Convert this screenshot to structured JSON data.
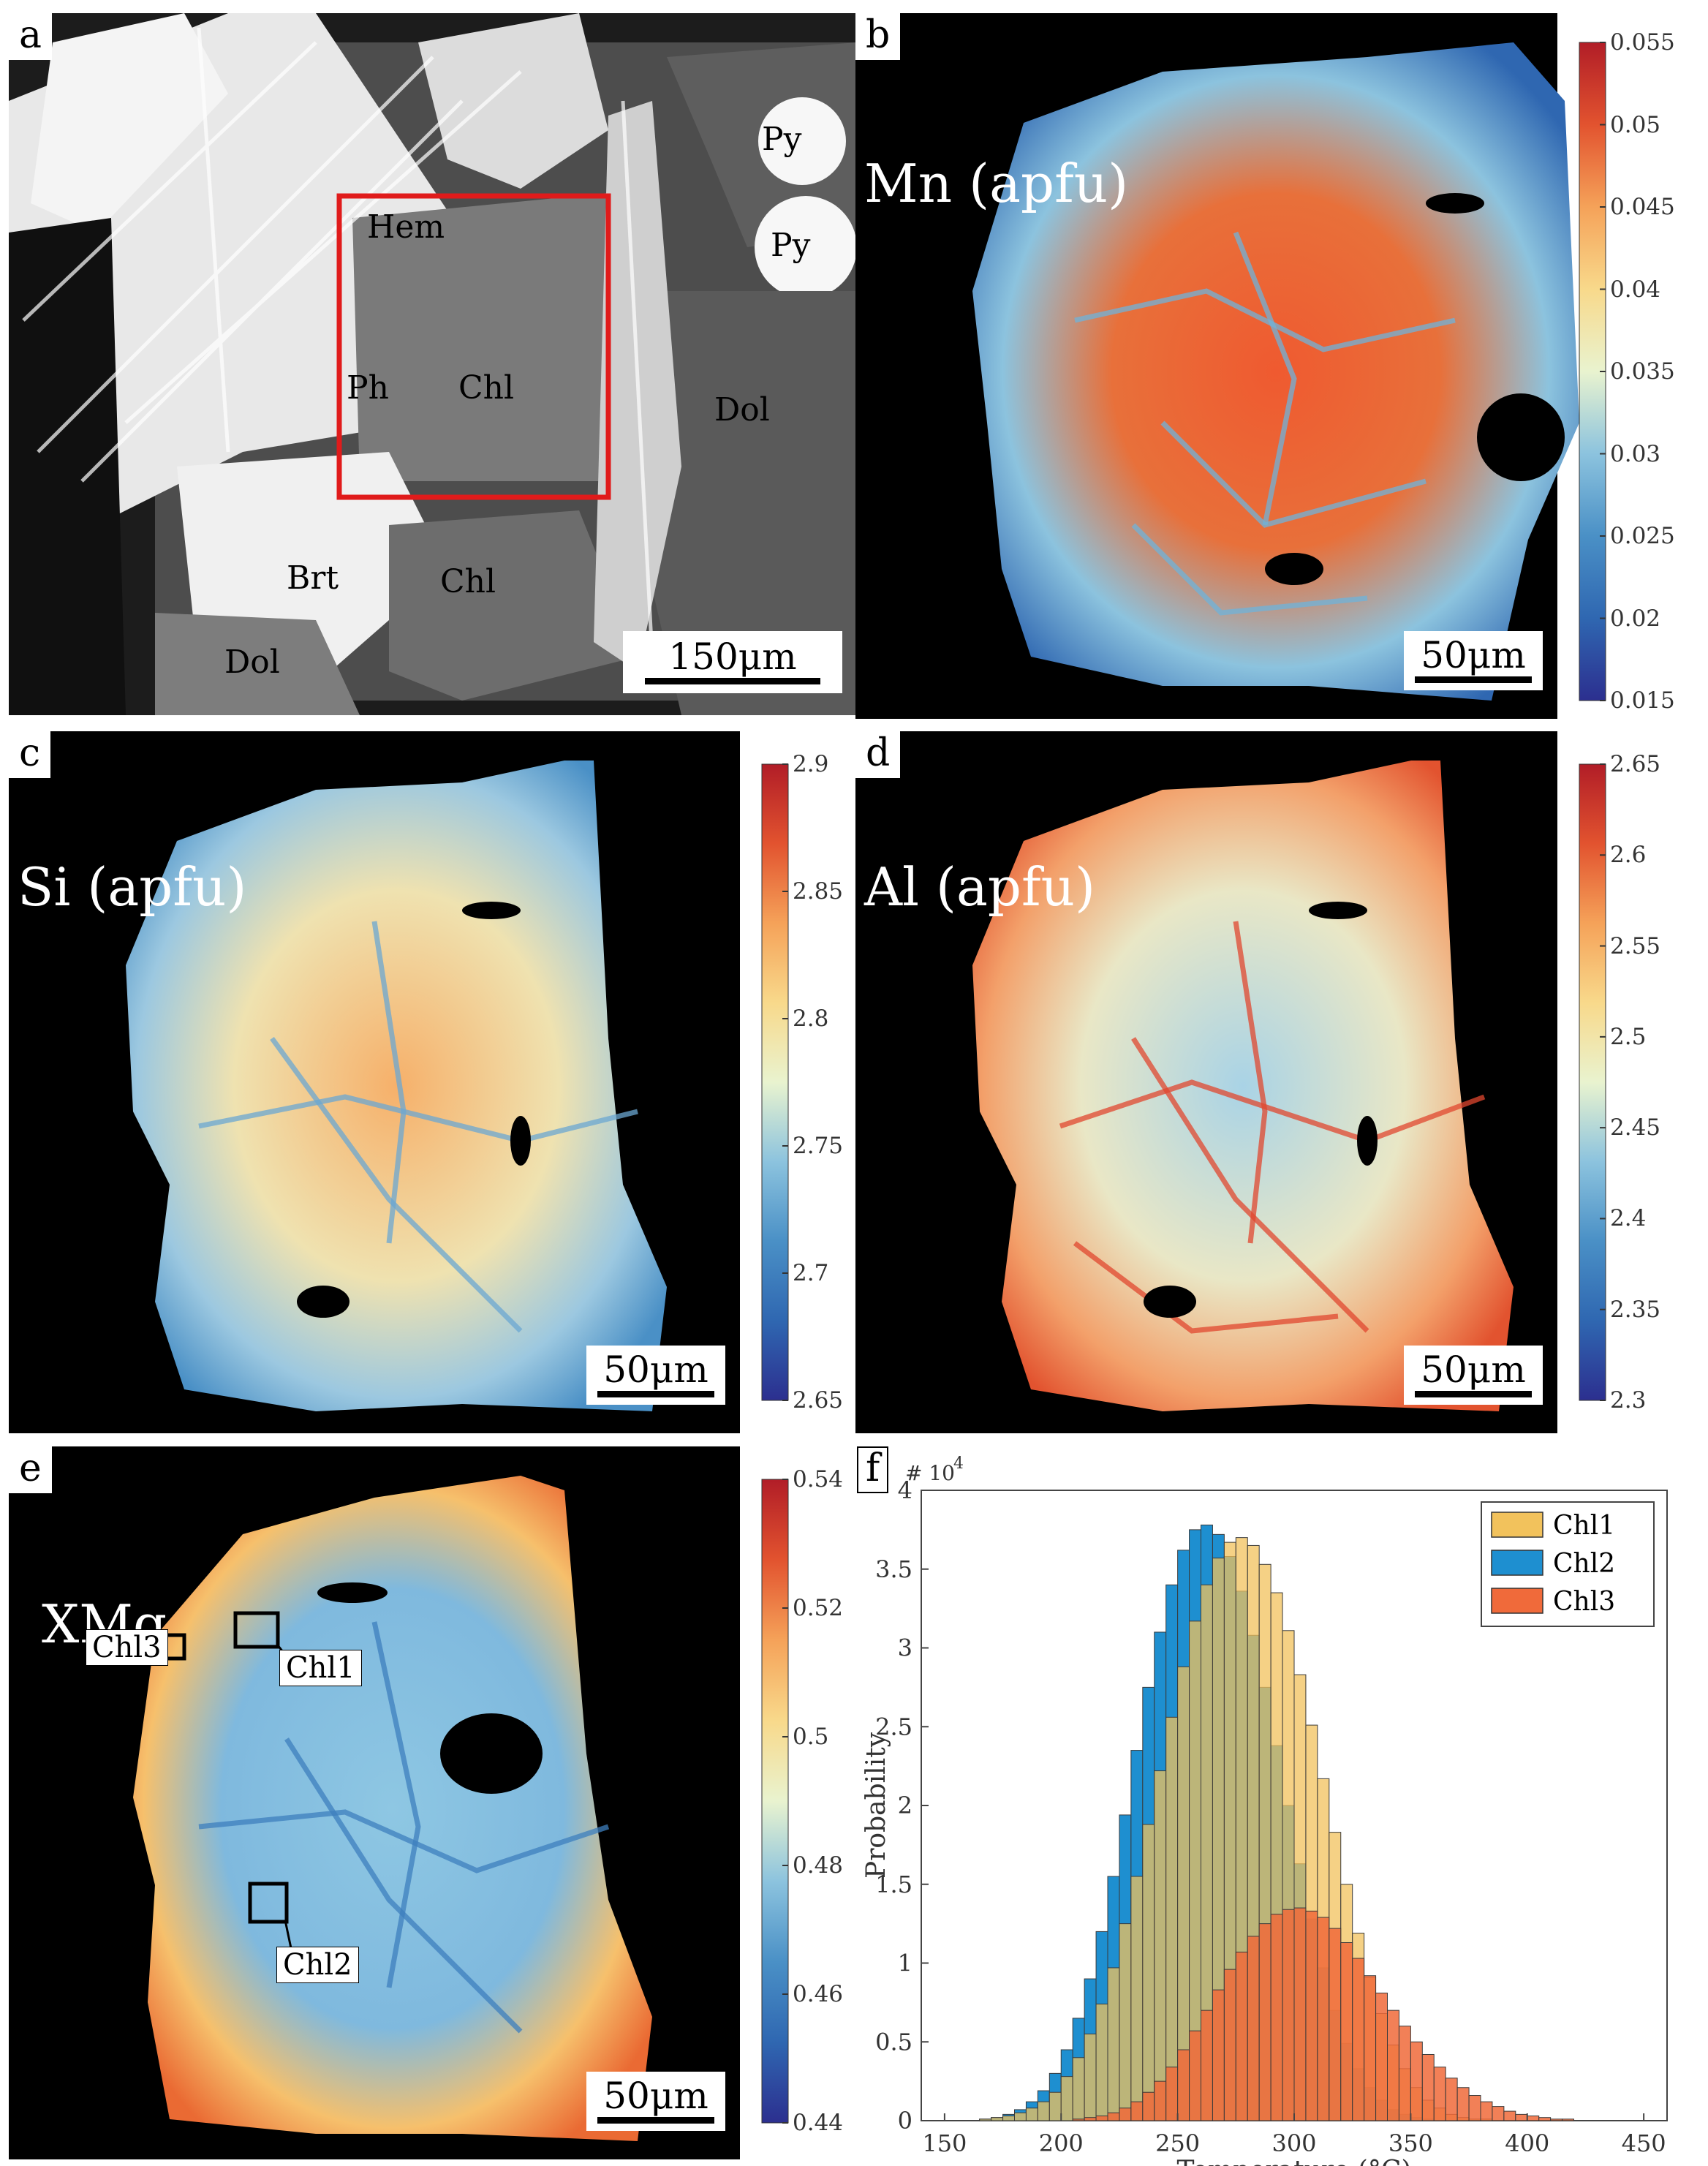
{
  "panels": {
    "a": {
      "letter": "a",
      "scalebar": "150μm",
      "minerals": [
        "Py",
        "Py",
        "Hem",
        "Ph",
        "Chl",
        "Dol",
        "Brt",
        "Chl",
        "Dol"
      ]
    },
    "b": {
      "letter": "b",
      "label": "Mn (apfu)",
      "scalebar": "50μm",
      "colorbar_ticks": [
        "0.055",
        "0.05",
        "0.045",
        "0.04",
        "0.035",
        "0.03",
        "0.025",
        "0.02",
        "0.015"
      ]
    },
    "c": {
      "letter": "c",
      "label": "Si (apfu)",
      "scalebar": "50μm",
      "colorbar_ticks": [
        "2.9",
        "2.85",
        "2.8",
        "2.75",
        "2.7",
        "2.65"
      ]
    },
    "d": {
      "letter": "d",
      "label": "Al (apfu)",
      "scalebar": "50μm",
      "colorbar_ticks": [
        "2.65",
        "2.6",
        "2.55",
        "2.5",
        "2.45",
        "2.4",
        "2.35",
        "2.3"
      ]
    },
    "e": {
      "letter": "e",
      "label": "XMg",
      "scalebar": "50μm",
      "colorbar_ticks": [
        "0.54",
        "0.52",
        "0.5",
        "0.48",
        "0.46",
        "0.44"
      ],
      "callouts": [
        "Chl3",
        "Chl1",
        "Chl2"
      ]
    },
    "f": {
      "letter": "f"
    }
  },
  "colors": {
    "histogram": {
      "Chl1": "#f2c25c",
      "Chl2": "#1e8fd0",
      "Chl3": "#f06a3a"
    },
    "roi_box": "#e01b1b"
  },
  "chart_data": {
    "type": "bar",
    "title": "",
    "xlabel": "Temperature (°C)",
    "ylabel": "Probability",
    "y_multiplier": "# 10",
    "y_multiplier_exponent": "4",
    "xlim": [
      140,
      460
    ],
    "ylim": [
      0,
      4
    ],
    "xticks": [
      "150",
      "200",
      "250",
      "300",
      "350",
      "400",
      "450"
    ],
    "yticks": [
      "0",
      "0.5",
      "1",
      "1.5",
      "2",
      "2.5",
      "3",
      "3.5",
      "4"
    ],
    "bin_width": 5,
    "bin_centers": [
      152.5,
      157.5,
      162.5,
      167.5,
      172.5,
      177.5,
      182.5,
      187.5,
      192.5,
      197.5,
      202.5,
      207.5,
      212.5,
      217.5,
      222.5,
      227.5,
      232.5,
      237.5,
      242.5,
      247.5,
      252.5,
      257.5,
      262.5,
      267.5,
      272.5,
      277.5,
      282.5,
      287.5,
      292.5,
      297.5,
      302.5,
      307.5,
      312.5,
      317.5,
      322.5,
      327.5,
      332.5,
      337.5,
      342.5,
      347.5,
      352.5,
      357.5,
      362.5,
      367.5,
      372.5,
      377.5,
      382.5,
      387.5,
      392.5,
      397.5,
      402.5,
      407.5,
      412.5,
      417.5,
      422.5,
      427.5,
      432.5,
      437.5,
      442.5,
      447.5
    ],
    "legend": "top-right",
    "series": [
      {
        "name": "Chl1",
        "values": [
          0,
          0,
          0,
          0.01,
          0.02,
          0.03,
          0.05,
          0.08,
          0.12,
          0.18,
          0.28,
          0.4,
          0.55,
          0.74,
          0.97,
          1.25,
          1.55,
          1.88,
          2.22,
          2.56,
          2.88,
          3.17,
          3.4,
          3.57,
          3.67,
          3.7,
          3.65,
          3.53,
          3.35,
          3.11,
          2.83,
          2.51,
          2.17,
          1.83,
          1.5,
          1.19,
          0.91,
          0.68,
          0.48,
          0.33,
          0.21,
          0.13,
          0.08,
          0.04,
          0.02,
          0.01,
          0.01,
          0,
          0,
          0,
          0,
          0,
          0,
          0,
          0,
          0,
          0,
          0,
          0,
          0
        ]
      },
      {
        "name": "Chl2",
        "values": [
          0,
          0,
          0,
          0.01,
          0.02,
          0.04,
          0.07,
          0.12,
          0.19,
          0.3,
          0.45,
          0.65,
          0.9,
          1.2,
          1.55,
          1.94,
          2.35,
          2.75,
          3.1,
          3.4,
          3.62,
          3.75,
          3.78,
          3.72,
          3.58,
          3.36,
          3.08,
          2.75,
          2.38,
          2.0,
          1.63,
          1.28,
          0.97,
          0.7,
          0.49,
          0.33,
          0.21,
          0.13,
          0.07,
          0.04,
          0.02,
          0.01,
          0,
          0,
          0,
          0,
          0,
          0,
          0,
          0,
          0,
          0,
          0,
          0,
          0,
          0,
          0,
          0,
          0,
          0
        ]
      },
      {
        "name": "Chl3",
        "values": [
          0,
          0,
          0,
          0,
          0,
          0,
          0,
          0,
          0,
          0,
          0,
          0.01,
          0.02,
          0.03,
          0.05,
          0.08,
          0.12,
          0.18,
          0.25,
          0.34,
          0.45,
          0.57,
          0.7,
          0.83,
          0.96,
          1.07,
          1.17,
          1.25,
          1.31,
          1.34,
          1.35,
          1.33,
          1.29,
          1.22,
          1.13,
          1.03,
          0.92,
          0.81,
          0.7,
          0.6,
          0.5,
          0.42,
          0.34,
          0.27,
          0.21,
          0.16,
          0.12,
          0.09,
          0.06,
          0.04,
          0.03,
          0.02,
          0.01,
          0.01,
          0,
          0,
          0,
          0,
          0,
          0
        ]
      }
    ]
  }
}
